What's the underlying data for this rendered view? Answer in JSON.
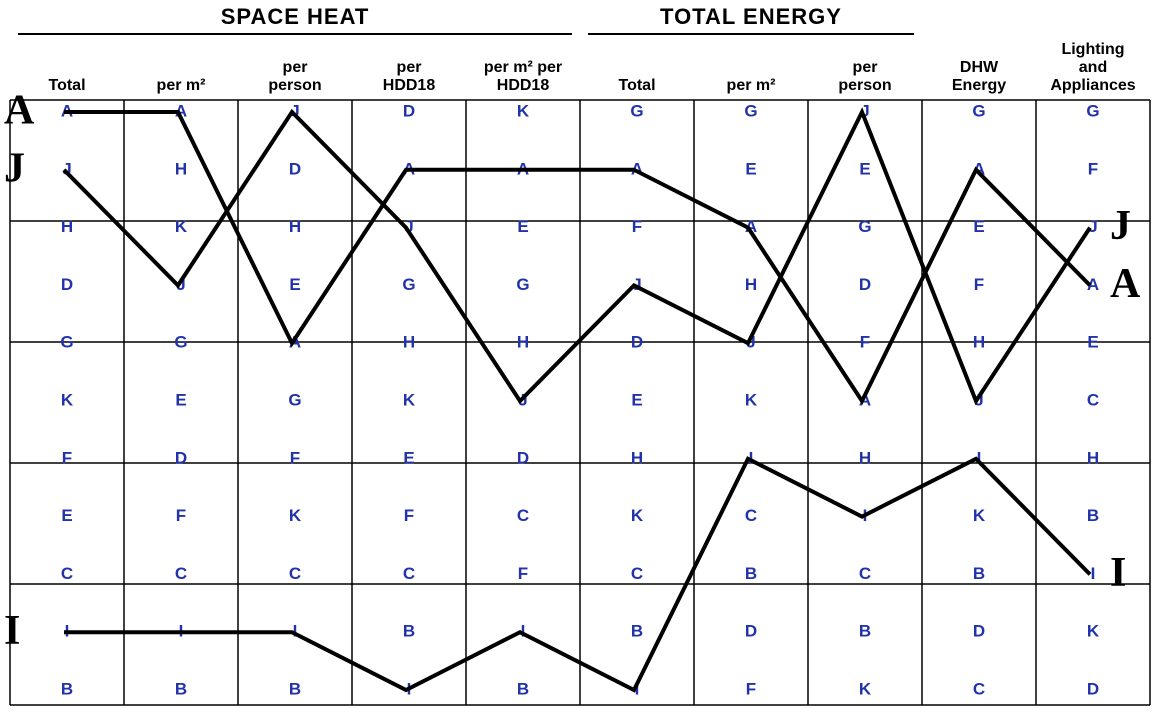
{
  "groups": [
    {
      "label": "SPACE HEAT",
      "columns": [
        {
          "header": [
            "Total"
          ],
          "letters": [
            "A",
            "J",
            "H",
            "D",
            "G",
            "K",
            "F",
            "E",
            "C",
            "I",
            "B"
          ]
        },
        {
          "header": [
            "per m²"
          ],
          "letters": [
            "A",
            "H",
            "K",
            "J",
            "G",
            "E",
            "D",
            "F",
            "C",
            "I",
            "B"
          ]
        },
        {
          "header": [
            "per",
            "person"
          ],
          "letters": [
            "J",
            "D",
            "H",
            "E",
            "A",
            "G",
            "F",
            "K",
            "C",
            "I",
            "B"
          ]
        },
        {
          "header": [
            "per",
            "HDD18"
          ],
          "letters": [
            "D",
            "A",
            "J",
            "G",
            "H",
            "K",
            "E",
            "F",
            "C",
            "B",
            "I"
          ]
        },
        {
          "header": [
            "per m² per",
            "HDD18"
          ],
          "letters": [
            "K",
            "A",
            "E",
            "G",
            "H",
            "J",
            "D",
            "C",
            "F",
            "I",
            "B"
          ]
        }
      ]
    },
    {
      "label": "TOTAL ENERGY",
      "columns": [
        {
          "header": [
            "Total"
          ],
          "letters": [
            "G",
            "A",
            "F",
            "J",
            "D",
            "E",
            "H",
            "K",
            "C",
            "B",
            "I"
          ]
        },
        {
          "header": [
            "per m²"
          ],
          "letters": [
            "G",
            "E",
            "A",
            "H",
            "J",
            "K",
            "I",
            "C",
            "B",
            "D",
            "F"
          ]
        },
        {
          "header": [
            "per",
            "person"
          ],
          "letters": [
            "J",
            "E",
            "G",
            "D",
            "F",
            "A",
            "H",
            "I",
            "C",
            "B",
            "K"
          ]
        }
      ]
    },
    {
      "columns": [
        {
          "header": [
            "DHW",
            "Energy"
          ],
          "letters": [
            "G",
            "A",
            "E",
            "F",
            "H",
            "J",
            "I",
            "K",
            "B",
            "D",
            "C"
          ]
        },
        {
          "header": [
            "Lighting",
            "and",
            "Appliances"
          ],
          "letters": [
            "G",
            "F",
            "J",
            "A",
            "E",
            "C",
            "H",
            "B",
            "I",
            "K",
            "D"
          ]
        }
      ]
    }
  ],
  "traced": [
    "A",
    "J",
    "I"
  ],
  "left_labels": [
    "A",
    "J",
    "I"
  ],
  "right_labels": [
    "J",
    "A",
    "I"
  ]
}
